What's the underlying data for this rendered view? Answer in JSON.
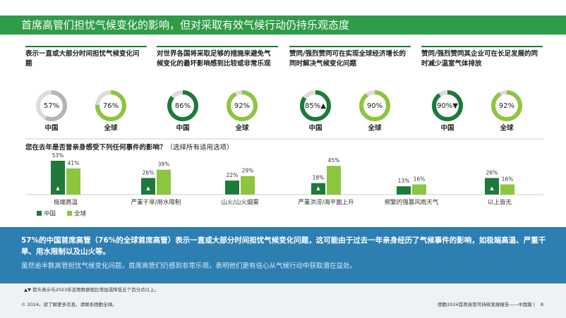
{
  "title": "首席高管们担忧气候变化的影响，但对采取有效气候行动仍持乐观态度",
  "chart_data": [
    {
      "type": "donut",
      "title": "表示一直或大部分时间担忧气候变化问题",
      "categories": [
        "中国",
        "全球"
      ],
      "values": [
        57,
        76
      ],
      "value_labels": [
        "57%",
        "76%"
      ],
      "colors": [
        "#b5b5b5",
        "#8cc63f"
      ]
    },
    {
      "type": "donut",
      "title": "对世界各国将采取足够的措施来避免气候变化的最坏影响感到比较或非常乐观",
      "categories": [
        "中国",
        "全球"
      ],
      "values": [
        86,
        92
      ],
      "value_labels": [
        "86%",
        "92%"
      ],
      "colors": [
        "#1d7a3a",
        "#8cc63f"
      ]
    },
    {
      "type": "donut",
      "title": "赞同/强烈赞同可在实现全球经济增长的同时解决气候变化问题",
      "categories": [
        "中国",
        "全球"
      ],
      "values": [
        85,
        90
      ],
      "value_labels": [
        "85%▲",
        "90%"
      ],
      "colors": [
        "#1d7a3a",
        "#8cc63f"
      ]
    },
    {
      "type": "donut",
      "title": "赞同/强烈赞同其企业可在长足发展的同时减少温室气体排放",
      "categories": [
        "中国",
        "全球"
      ],
      "values": [
        90,
        92
      ],
      "value_labels": [
        "90%▼",
        "92%"
      ],
      "colors": [
        "#1d7a3a",
        "#8cc63f"
      ]
    },
    {
      "type": "bar",
      "title": "您在去年是否曾亲身感受下列任何事件的影响？",
      "subtitle": "（选择所有适用选项）",
      "categories": [
        "极端高温",
        "严重干旱/用水限制",
        "山火/山火烟雾",
        "严重洪涝/海平面上升",
        "频繁的强暴风雨天气",
        "以上皆无"
      ],
      "series": [
        {
          "name": "中国",
          "color": "#1d7a3a",
          "values": [
            53,
            26,
            22,
            18,
            13,
            26
          ],
          "value_labels": [
            "53%",
            "26%",
            "22%",
            "18%",
            "13%",
            "26%"
          ],
          "arrows": [
            "▲",
            "▲",
            null,
            "▲",
            null,
            "▲"
          ]
        },
        {
          "name": "全球",
          "color": "#8cc63f",
          "values": [
            41,
            39,
            29,
            45,
            16,
            16
          ],
          "value_labels": [
            "41%",
            "39%",
            "29%",
            "45%",
            "16%",
            "16%"
          ]
        }
      ]
    }
  ],
  "summary": {
    "headline": "57%的中国首席高管（76%的全球首席高管）表示一直或大部分时间担忧气候变化问题，这可能由于过去一年亲身经历了气候事件的影响，如极端高温、严重干旱、用水限制以及山火等。",
    "body": "虽然逾半数高管担忧气候变化问题，首席高管们仍感到非常乐观，表明他们更有信心从气候行动中获取潜在益处。"
  },
  "footnote": "▲▼ 箭头表示与2023年适用数据相比增加或降低五个百分点以上。",
  "footer": {
    "left": "© 2024。欲了解更多信息，请联系德勤全球。",
    "right": "德勤2024首席高管可持续发展报告——中国篇 |",
    "page": "8"
  }
}
